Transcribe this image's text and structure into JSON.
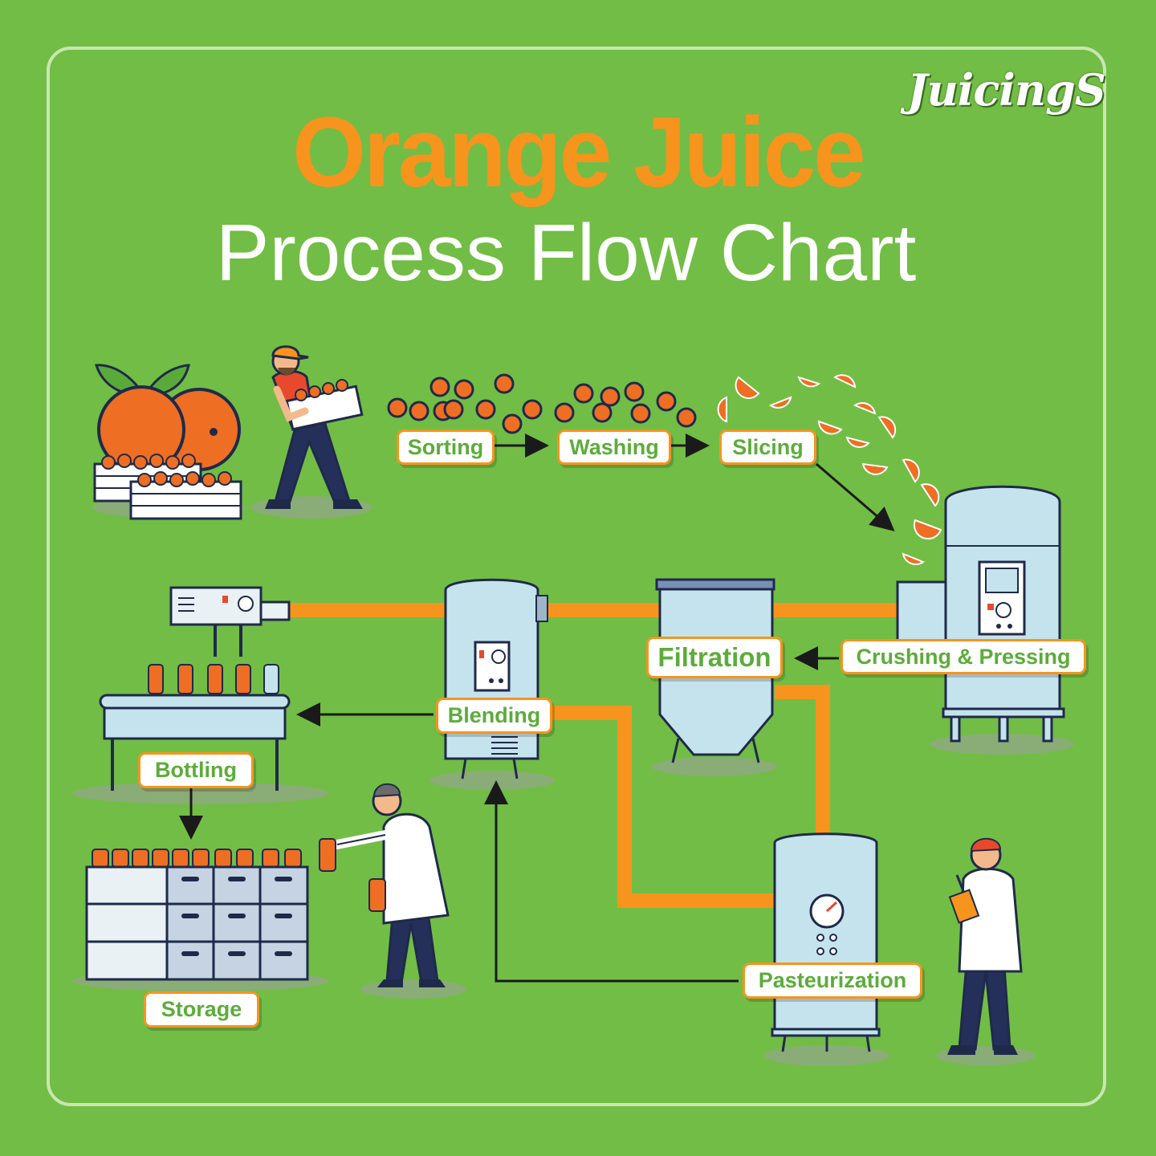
{
  "brand": {
    "logo_text": "JuicingS"
  },
  "title": {
    "line1": "Orange Juice",
    "line2": "Process Flow Chart"
  },
  "steps": {
    "sorting": "Sorting",
    "washing": "Washing",
    "slicing": "Slicing",
    "crushing": "Crushing & Pressing",
    "filtration": "Filtration",
    "blending": "Blending",
    "bottling": "Bottling",
    "storage": "Storage",
    "pasteurization": "Pasteurization"
  },
  "colors": {
    "background": "#72bd45",
    "accent_orange": "#f7941d",
    "label_text_green": "#5cac3a",
    "tank_blue": "#c5e3ed",
    "outline_navy": "#1f2a4a",
    "fruit_orange": "#ee6e23"
  }
}
